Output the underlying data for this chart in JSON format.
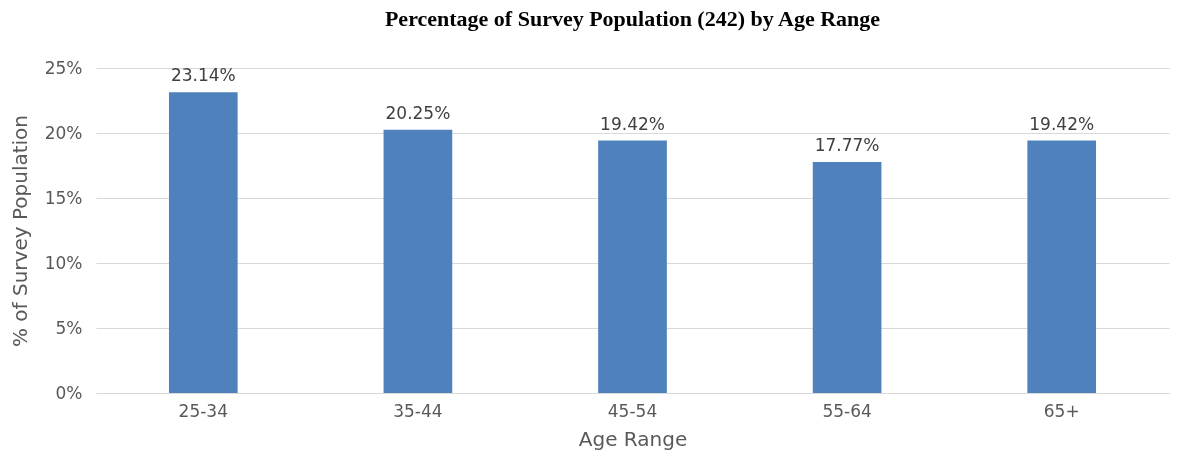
{
  "chart_data": {
    "type": "bar",
    "title": "Percentage of Survey Population (242) by Age Range",
    "xlabel": "Age Range",
    "ylabel": "% of Survey Population",
    "categories": [
      "25-34",
      "35-44",
      "45-54",
      "55-64",
      "65+"
    ],
    "values": [
      23.14,
      20.25,
      19.42,
      17.77,
      19.42
    ],
    "value_labels": [
      "23.14%",
      "20.25%",
      "19.42%",
      "17.77%",
      "19.42%"
    ],
    "color": "#4f81bd",
    "ylim": [
      0,
      25
    ],
    "yticks": [
      {
        "value": 0,
        "label": "0%"
      },
      {
        "value": 5,
        "label": "5%"
      },
      {
        "value": 10,
        "label": "10%"
      },
      {
        "value": 15,
        "label": "15%"
      },
      {
        "value": 20,
        "label": "20%"
      },
      {
        "value": 25,
        "label": "25%"
      }
    ],
    "grid": "y"
  }
}
